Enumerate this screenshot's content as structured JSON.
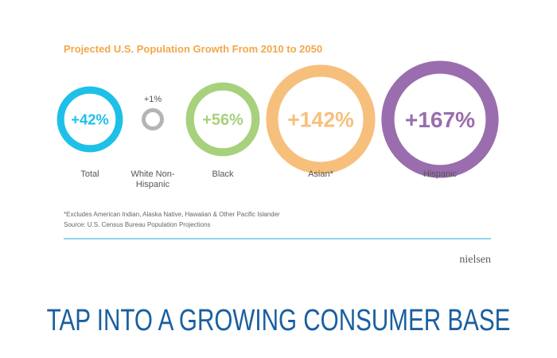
{
  "chart_data": {
    "type": "bubble",
    "title": "Projected U.S. Population Growth From 2010 to 2050",
    "categories": [
      "Total",
      "White Non-Hispanic",
      "Black",
      "Asian*",
      "Hispanic"
    ],
    "values": [
      42,
      1,
      56,
      142,
      167
    ],
    "value_labels": [
      "+42%",
      "+1%",
      "+56%",
      "+142%",
      "+167%"
    ],
    "colors": [
      "#1ec0e8",
      "#b4b4b4",
      "#a7d17c",
      "#f6c07c",
      "#9a6daf"
    ],
    "notes": [
      "*Excludes American Indian, Alaska Native, Hawaiian & Other Pacific Islander",
      "Source: U.S. Census Bureau Population Projections"
    ]
  },
  "brand": "nielsen",
  "headline": "TAP INTO A GROWING CONSUMER BASE"
}
